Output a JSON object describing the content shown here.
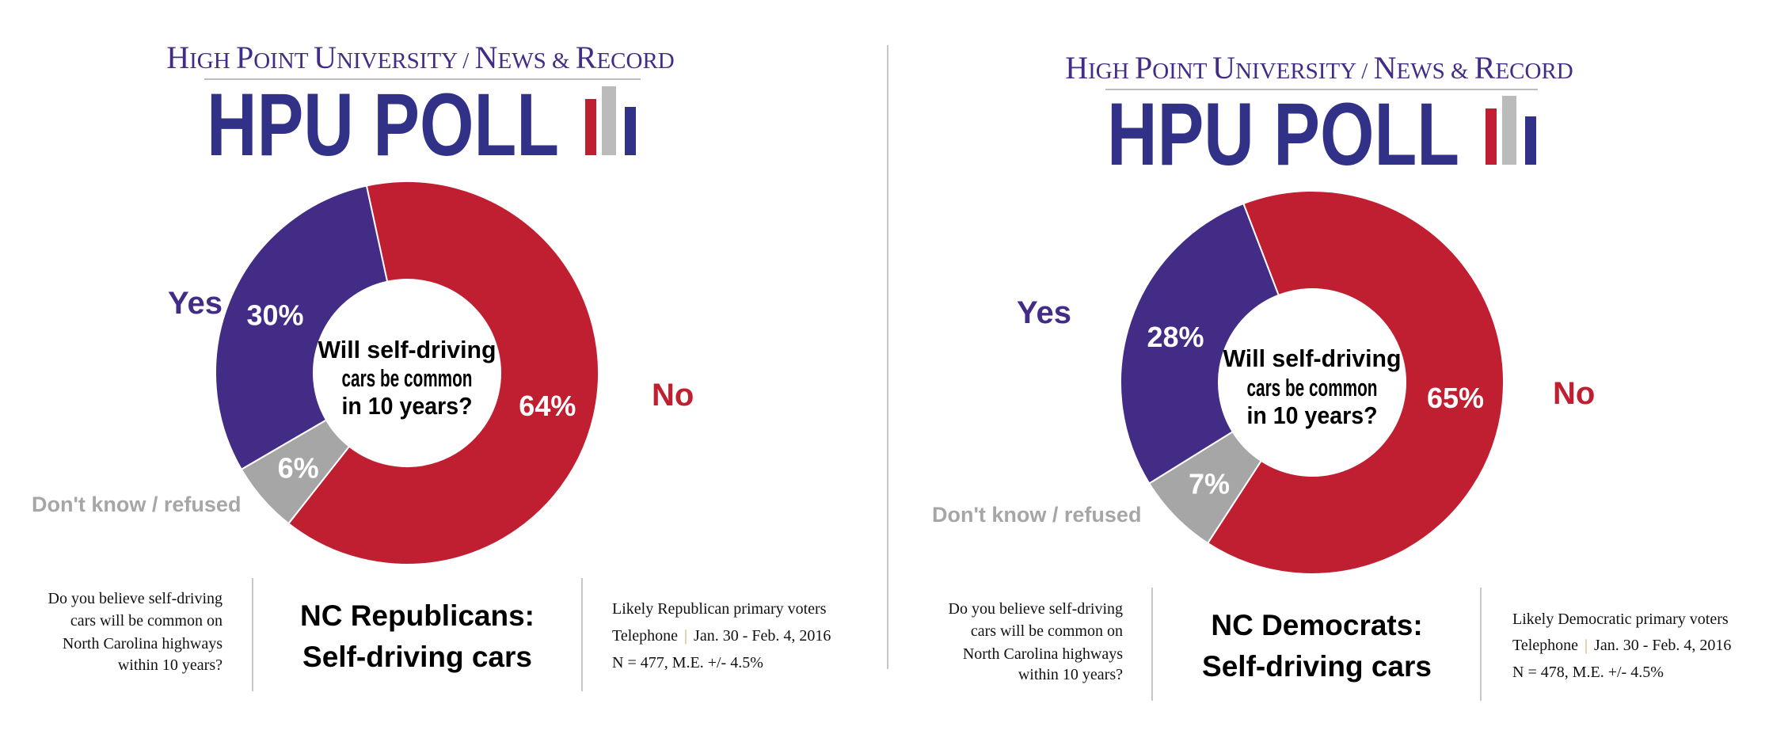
{
  "colors": {
    "yes": "#432c86",
    "no": "#c01f32",
    "dk": "#a6a6a6",
    "logo_navy": "#313187",
    "logo_gray": "#bbbbbb",
    "divider": "#c8c8c8",
    "pipe": "#c9a464"
  },
  "panels": [
    {
      "header": {
        "title_parts": [
          "H",
          "IGH ",
          "P",
          "OINT ",
          "U",
          "NIVERSITY / ",
          "N",
          "EWS & ",
          "R",
          "ECORD"
        ],
        "logo_text": "HPU POLL"
      },
      "center_question": [
        "Will self-driving",
        "cars be common",
        "in 10 years?"
      ],
      "labels": {
        "yes": "Yes",
        "no": "No",
        "dk": "Don't know / refused"
      },
      "question": [
        "Do you believe self-driving",
        "cars will be common on",
        "North Carolina highways",
        "within 10 years?"
      ],
      "heading": [
        "NC Republicans:",
        "Self-driving cars"
      ],
      "info": {
        "population": "Likely Republican primary voters",
        "method": "Telephone",
        "pipe": "|",
        "dates": "Jan. 30 - Feb. 4, 2016",
        "sample": "N = 477, M.E. +/- 4.5%"
      }
    },
    {
      "header": {
        "title_parts": [
          "H",
          "IGH ",
          "P",
          "OINT ",
          "U",
          "NIVERSITY / ",
          "N",
          "EWS & ",
          "R",
          "ECORD"
        ],
        "logo_text": "HPU POLL"
      },
      "center_question": [
        "Will self-driving",
        "cars be common",
        "in 10 years?"
      ],
      "labels": {
        "yes": "Yes",
        "no": "No",
        "dk": "Don't know / refused"
      },
      "question": [
        "Do you believe self-driving",
        "cars will be common on",
        "North Carolina highways",
        "within 10 years?"
      ],
      "heading": [
        "NC Democrats:",
        "Self-driving cars"
      ],
      "info": {
        "population": "Likely Democratic primary voters",
        "method": "Telephone",
        "pipe": "|",
        "dates": "Jan. 30 - Feb. 4, 2016",
        "sample": "N = 478, M.E. +/- 4.5%"
      }
    }
  ],
  "chart_data": [
    {
      "type": "pie",
      "title": "NC Republicans: Self-driving cars",
      "subtitle": "Will self-driving cars be common in 10 years?",
      "categories": [
        "No",
        "Don't know / refused",
        "Yes"
      ],
      "values": [
        64,
        6,
        30
      ],
      "value_labels": [
        "64%",
        "6%",
        "30%"
      ],
      "unit": "%"
    },
    {
      "type": "pie",
      "title": "NC Democrats: Self-driving cars",
      "subtitle": "Will self-driving cars be common in 10 years?",
      "categories": [
        "No",
        "Don't know / refused",
        "Yes"
      ],
      "values": [
        65,
        7,
        28
      ],
      "value_labels": [
        "65%",
        "7%",
        "28%"
      ],
      "unit": "%"
    }
  ]
}
